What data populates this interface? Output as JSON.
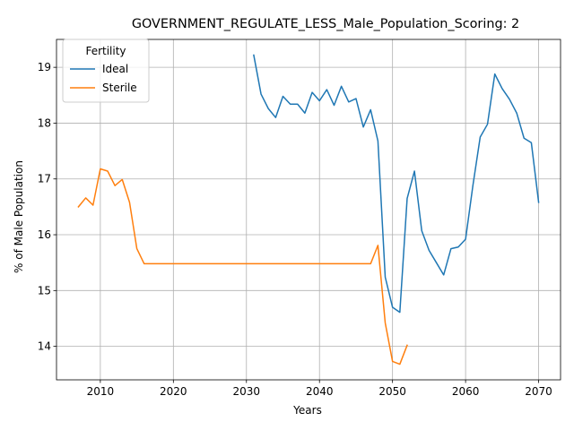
{
  "chart_data": {
    "type": "line",
    "title": "GOVERNMENT_REGULATE_LESS_Male_Population_Scoring: 2",
    "xlabel": "Years",
    "ylabel": "% of Male Population",
    "xlim": [
      2004,
      2073
    ],
    "ylim": [
      13.4,
      19.5
    ],
    "xticks": [
      2010,
      2020,
      2030,
      2040,
      2050,
      2060,
      2070
    ],
    "yticks": [
      14,
      15,
      16,
      17,
      18,
      19
    ],
    "grid": true,
    "legend": {
      "title": "Fertility",
      "placement": "top-left"
    },
    "series": [
      {
        "name": "Ideal",
        "color": "#1f77b4",
        "x": [
          2031,
          2032,
          2033,
          2034,
          2035,
          2036,
          2037,
          2038,
          2039,
          2040,
          2041,
          2042,
          2043,
          2044,
          2045,
          2046,
          2047,
          2048,
          2049,
          2050,
          2051,
          2052,
          2053,
          2054,
          2055,
          2056,
          2057,
          2058,
          2059,
          2060,
          2061,
          2062,
          2063,
          2064,
          2065,
          2066,
          2067,
          2068,
          2069,
          2070
        ],
        "y": [
          19.22,
          18.52,
          18.26,
          18.1,
          18.48,
          18.34,
          18.34,
          18.18,
          18.55,
          18.4,
          18.6,
          18.32,
          18.66,
          18.38,
          18.44,
          17.93,
          18.24,
          17.68,
          15.24,
          14.7,
          14.61,
          16.65,
          17.14,
          16.07,
          15.72,
          15.5,
          15.28,
          15.75,
          15.78,
          15.92,
          16.88,
          17.75,
          17.98,
          18.88,
          18.62,
          18.43,
          18.18,
          17.73,
          17.65,
          16.58
        ]
      },
      {
        "name": "Sterile",
        "color": "#ff7f0e",
        "x": [
          2007,
          2008,
          2009,
          2010,
          2011,
          2012,
          2013,
          2014,
          2015,
          2016,
          2017,
          2018,
          2019,
          2020,
          2021,
          2022,
          2023,
          2024,
          2025,
          2026,
          2027,
          2028,
          2029,
          2030,
          2031,
          2032,
          2033,
          2034,
          2035,
          2036,
          2037,
          2038,
          2039,
          2040,
          2041,
          2042,
          2043,
          2044,
          2045,
          2046,
          2047,
          2048,
          2049,
          2050,
          2051,
          2052
        ],
        "y": [
          16.5,
          16.66,
          16.53,
          17.18,
          17.14,
          16.88,
          16.99,
          16.58,
          15.75,
          15.48,
          15.48,
          15.48,
          15.48,
          15.48,
          15.48,
          15.48,
          15.48,
          15.48,
          15.48,
          15.48,
          15.48,
          15.48,
          15.48,
          15.48,
          15.48,
          15.48,
          15.48,
          15.48,
          15.48,
          15.48,
          15.48,
          15.48,
          15.48,
          15.48,
          15.48,
          15.48,
          15.48,
          15.48,
          15.48,
          15.48,
          15.48,
          15.81,
          14.42,
          13.73,
          13.68,
          14.02
        ]
      }
    ]
  }
}
